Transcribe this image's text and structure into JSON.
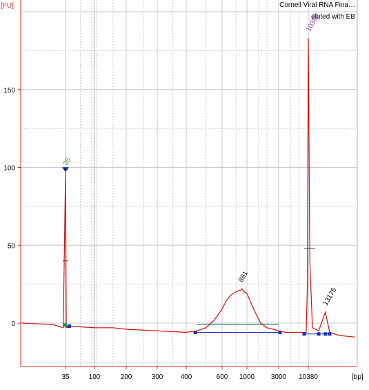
{
  "chart_data": {
    "type": "line",
    "title": "Cornell Viral RNA Fina…",
    "subtitle": "eluted with EB",
    "ylabel": "[FU]",
    "xlabel": "[bp]",
    "x_scale": "electrophoretic (nonlinear)",
    "ylim": [
      -30,
      205
    ],
    "y_ticks": [
      0,
      50,
      100,
      150
    ],
    "x_ticks": [
      "35",
      "100",
      "200",
      "300",
      "400",
      "600",
      "1000",
      "3000",
      "10380"
    ],
    "grid": true,
    "series": [
      {
        "x": [
          20,
          30,
          34,
          35,
          36,
          40,
          100,
          150,
          200,
          300,
          400,
          450,
          500,
          550,
          600,
          650,
          700,
          750,
          800,
          850,
          881,
          900,
          950,
          1000,
          1100,
          1200,
          1400,
          1600,
          2000,
          2500,
          3000,
          4000,
          6000,
          8000,
          9500,
          10000,
          10380,
          10600,
          11000,
          12000,
          13176,
          14000,
          16000,
          20000
        ],
        "y": [
          0,
          -1,
          -3,
          97,
          -3,
          -2,
          -3,
          -3,
          -4,
          -5,
          -6,
          -5,
          -3,
          2,
          9,
          14,
          17,
          19,
          20,
          21,
          21,
          22,
          20,
          19,
          15,
          11,
          5,
          0,
          -3,
          -4,
          -5,
          -6,
          -6,
          -6,
          -6,
          25,
          183,
          40,
          -3,
          -5,
          7,
          -6,
          -8,
          -9
        ]
      }
    ],
    "peaks": [
      {
        "label": "35",
        "x": 35,
        "y": 97,
        "role": "lower marker"
      },
      {
        "label": "881",
        "x": 881,
        "y": 22
      },
      {
        "label": "10380",
        "x": 10380,
        "y": 183,
        "role": "upper marker"
      },
      {
        "label": "13176",
        "x": 13176,
        "y": 7
      }
    ],
    "smear_region": {
      "from": 450,
      "to": 3000
    },
    "colors": {
      "trace": "#cc1010",
      "baseline": "#1030c0",
      "threshold": "#208060",
      "grid": "#c4c8d0",
      "marker_lower": "#20a020",
      "marker_upper": "#9040b0"
    }
  }
}
